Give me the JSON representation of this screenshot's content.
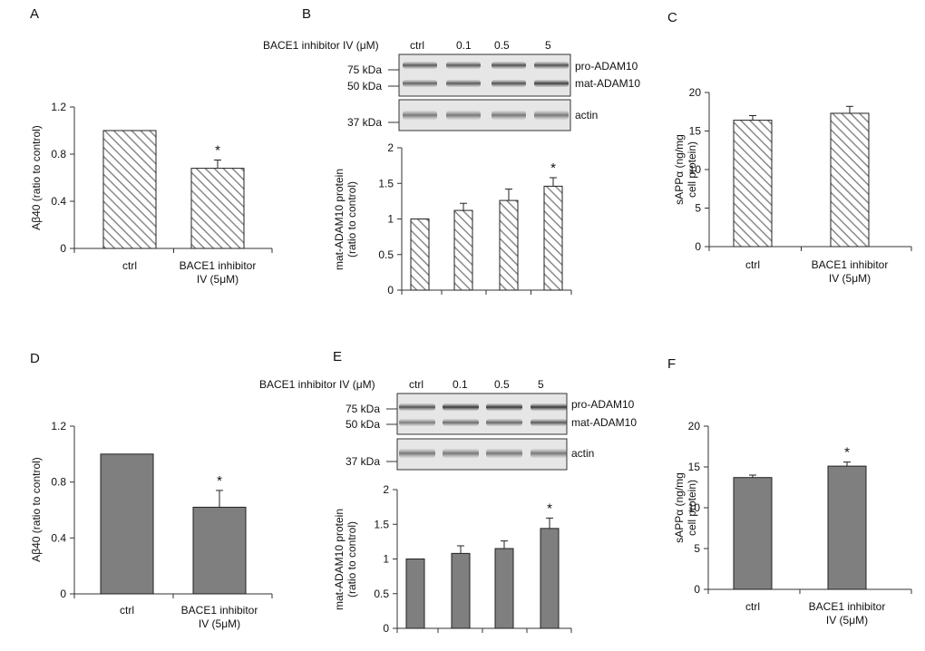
{
  "chart_data": [
    {
      "panel": "A",
      "type": "bar",
      "style": "hatched",
      "categories": [
        "ctrl",
        "BACE1 inhibitor\nIV (5μM)"
      ],
      "values": [
        1.0,
        0.68
      ],
      "errors": [
        0,
        0.07
      ],
      "significance": [
        "",
        "*"
      ],
      "ylabel": "Aβ40 (ratio to control)",
      "ylim": [
        0,
        1.2
      ],
      "yticks": [
        "0",
        "0.4",
        "0.8",
        "1.2"
      ]
    },
    {
      "panel": "B",
      "type": "bar",
      "style": "hatched",
      "categories": [
        "",
        "",
        "",
        ""
      ],
      "values": [
        1.0,
        1.12,
        1.26,
        1.46
      ],
      "errors": [
        0,
        0.1,
        0.16,
        0.12
      ],
      "significance": [
        "",
        "",
        "",
        "*"
      ],
      "ylabel": "mat-ADAM10 protein\n(ratio to control)",
      "ylim": [
        0,
        2
      ],
      "yticks": [
        "0",
        "0.5",
        "1",
        "1.5",
        "2"
      ]
    },
    {
      "panel": "C",
      "type": "bar",
      "style": "hatched",
      "categories": [
        "ctrl",
        "BACE1 inhibitor\nIV (5μM)"
      ],
      "values": [
        16.4,
        17.3
      ],
      "errors": [
        0.6,
        0.9
      ],
      "significance": [
        "",
        ""
      ],
      "ylabel": "sAPPα (ng/mg\ncell protein)",
      "ylim": [
        0,
        20
      ],
      "yticks": [
        "0",
        "5",
        "10",
        "15",
        "20"
      ]
    },
    {
      "panel": "D",
      "type": "bar",
      "style": "solid",
      "categories": [
        "ctrl",
        "BACE1 inhibitor\nIV (5μM)"
      ],
      "values": [
        1.0,
        0.62
      ],
      "errors": [
        0,
        0.12
      ],
      "significance": [
        "",
        "*"
      ],
      "ylabel": "Aβ40 (ratio to control)",
      "ylim": [
        0,
        1.2
      ],
      "yticks": [
        "0",
        "0.4",
        "0.8",
        "1.2"
      ]
    },
    {
      "panel": "E",
      "type": "bar",
      "style": "solid",
      "categories": [
        "",
        "",
        "",
        ""
      ],
      "values": [
        1.0,
        1.08,
        1.15,
        1.44
      ],
      "errors": [
        0,
        0.11,
        0.11,
        0.15
      ],
      "significance": [
        "",
        "",
        "",
        "*"
      ],
      "ylabel": "mat-ADAM10 protein\n(ratio to control)",
      "ylim": [
        0,
        2
      ],
      "yticks": [
        "0",
        "0.5",
        "1",
        "1.5",
        "2"
      ]
    },
    {
      "panel": "F",
      "type": "bar",
      "style": "solid",
      "categories": [
        "ctrl",
        "BACE1 inhibitor\nIV (5μM)"
      ],
      "values": [
        13.7,
        15.1
      ],
      "errors": [
        0.3,
        0.5
      ],
      "significance": [
        "",
        "*"
      ],
      "ylabel": "sAPPα (ng/mg\ncell protein)",
      "ylim": [
        0,
        20
      ],
      "yticks": [
        "0",
        "5",
        "10",
        "15",
        "20"
      ]
    }
  ],
  "blots": [
    {
      "panel": "B",
      "treatment_label": "BACE1 inhibitor IV (μM)",
      "lanes": [
        "ctrl",
        "0.1",
        "0.5",
        "5"
      ],
      "markers": [
        "75 kDa",
        "50 kDa",
        "37 kDa"
      ],
      "bands": [
        "pro-ADAM10",
        "mat-ADAM10",
        "actin"
      ]
    },
    {
      "panel": "E",
      "treatment_label": "BACE1 inhibitor IV (μM)",
      "lanes": [
        "ctrl",
        "0.1",
        "0.5",
        "5"
      ],
      "markers": [
        "75 kDa",
        "50 kDa",
        "37 kDa"
      ],
      "bands": [
        "pro-ADAM10",
        "mat-ADAM10",
        "actin"
      ]
    }
  ],
  "colors": {
    "solid_bar": "#7f7f7f",
    "hatch": "#8a8a8a",
    "axis": "#333333",
    "blot_bg": "#e6e6e6",
    "band": "#3a3a3a"
  }
}
